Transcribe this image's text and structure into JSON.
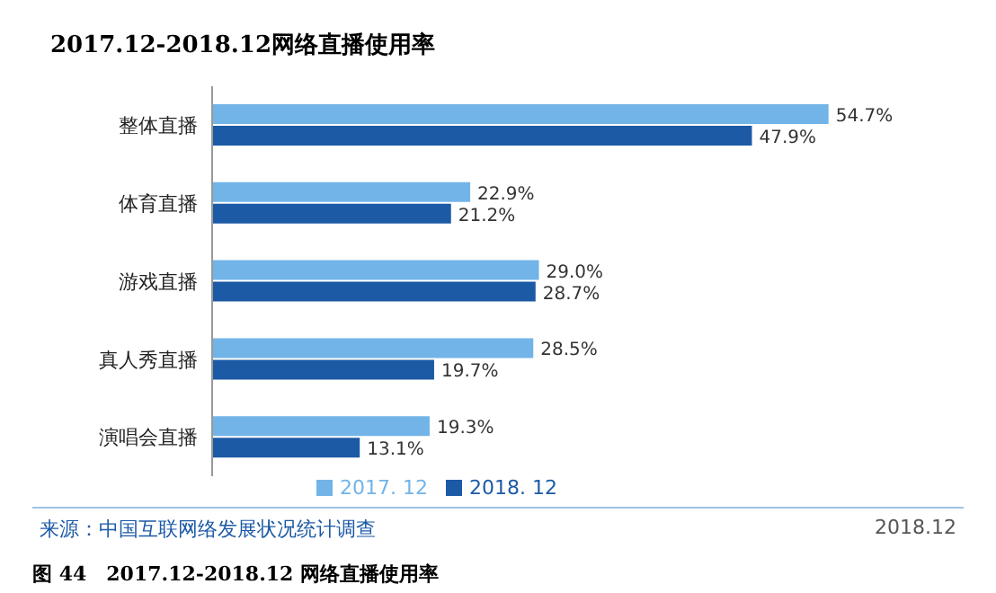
{
  "chart_data": {
    "type": "bar",
    "orientation": "horizontal",
    "title": "2017.12-2018.12网络直播使用率",
    "categories": [
      "整体直播",
      "体育直播",
      "游戏直播",
      "真人秀直播",
      "演唱会直播"
    ],
    "series": [
      {
        "name": "2017. 12",
        "color": "#72b4e8",
        "values": [
          54.7,
          22.9,
          29.0,
          28.5,
          19.3
        ],
        "value_labels": [
          "54.7%",
          "22.9%",
          "29.0%",
          "28.5%",
          "19.3%"
        ]
      },
      {
        "name": "2018. 12",
        "color": "#1c5aa6",
        "values": [
          47.9,
          21.2,
          28.7,
          19.7,
          13.1
        ],
        "value_labels": [
          "47.9%",
          "21.2%",
          "28.7%",
          "19.7%",
          "13.1%"
        ]
      }
    ],
    "tick_labels": "y",
    "legend": "bottom",
    "annotations": [
      "来源：中国互联网络发展状况统计调查",
      "2018.12",
      "图 44　2017.12-2018.12 网络直播使用率"
    ]
  }
}
